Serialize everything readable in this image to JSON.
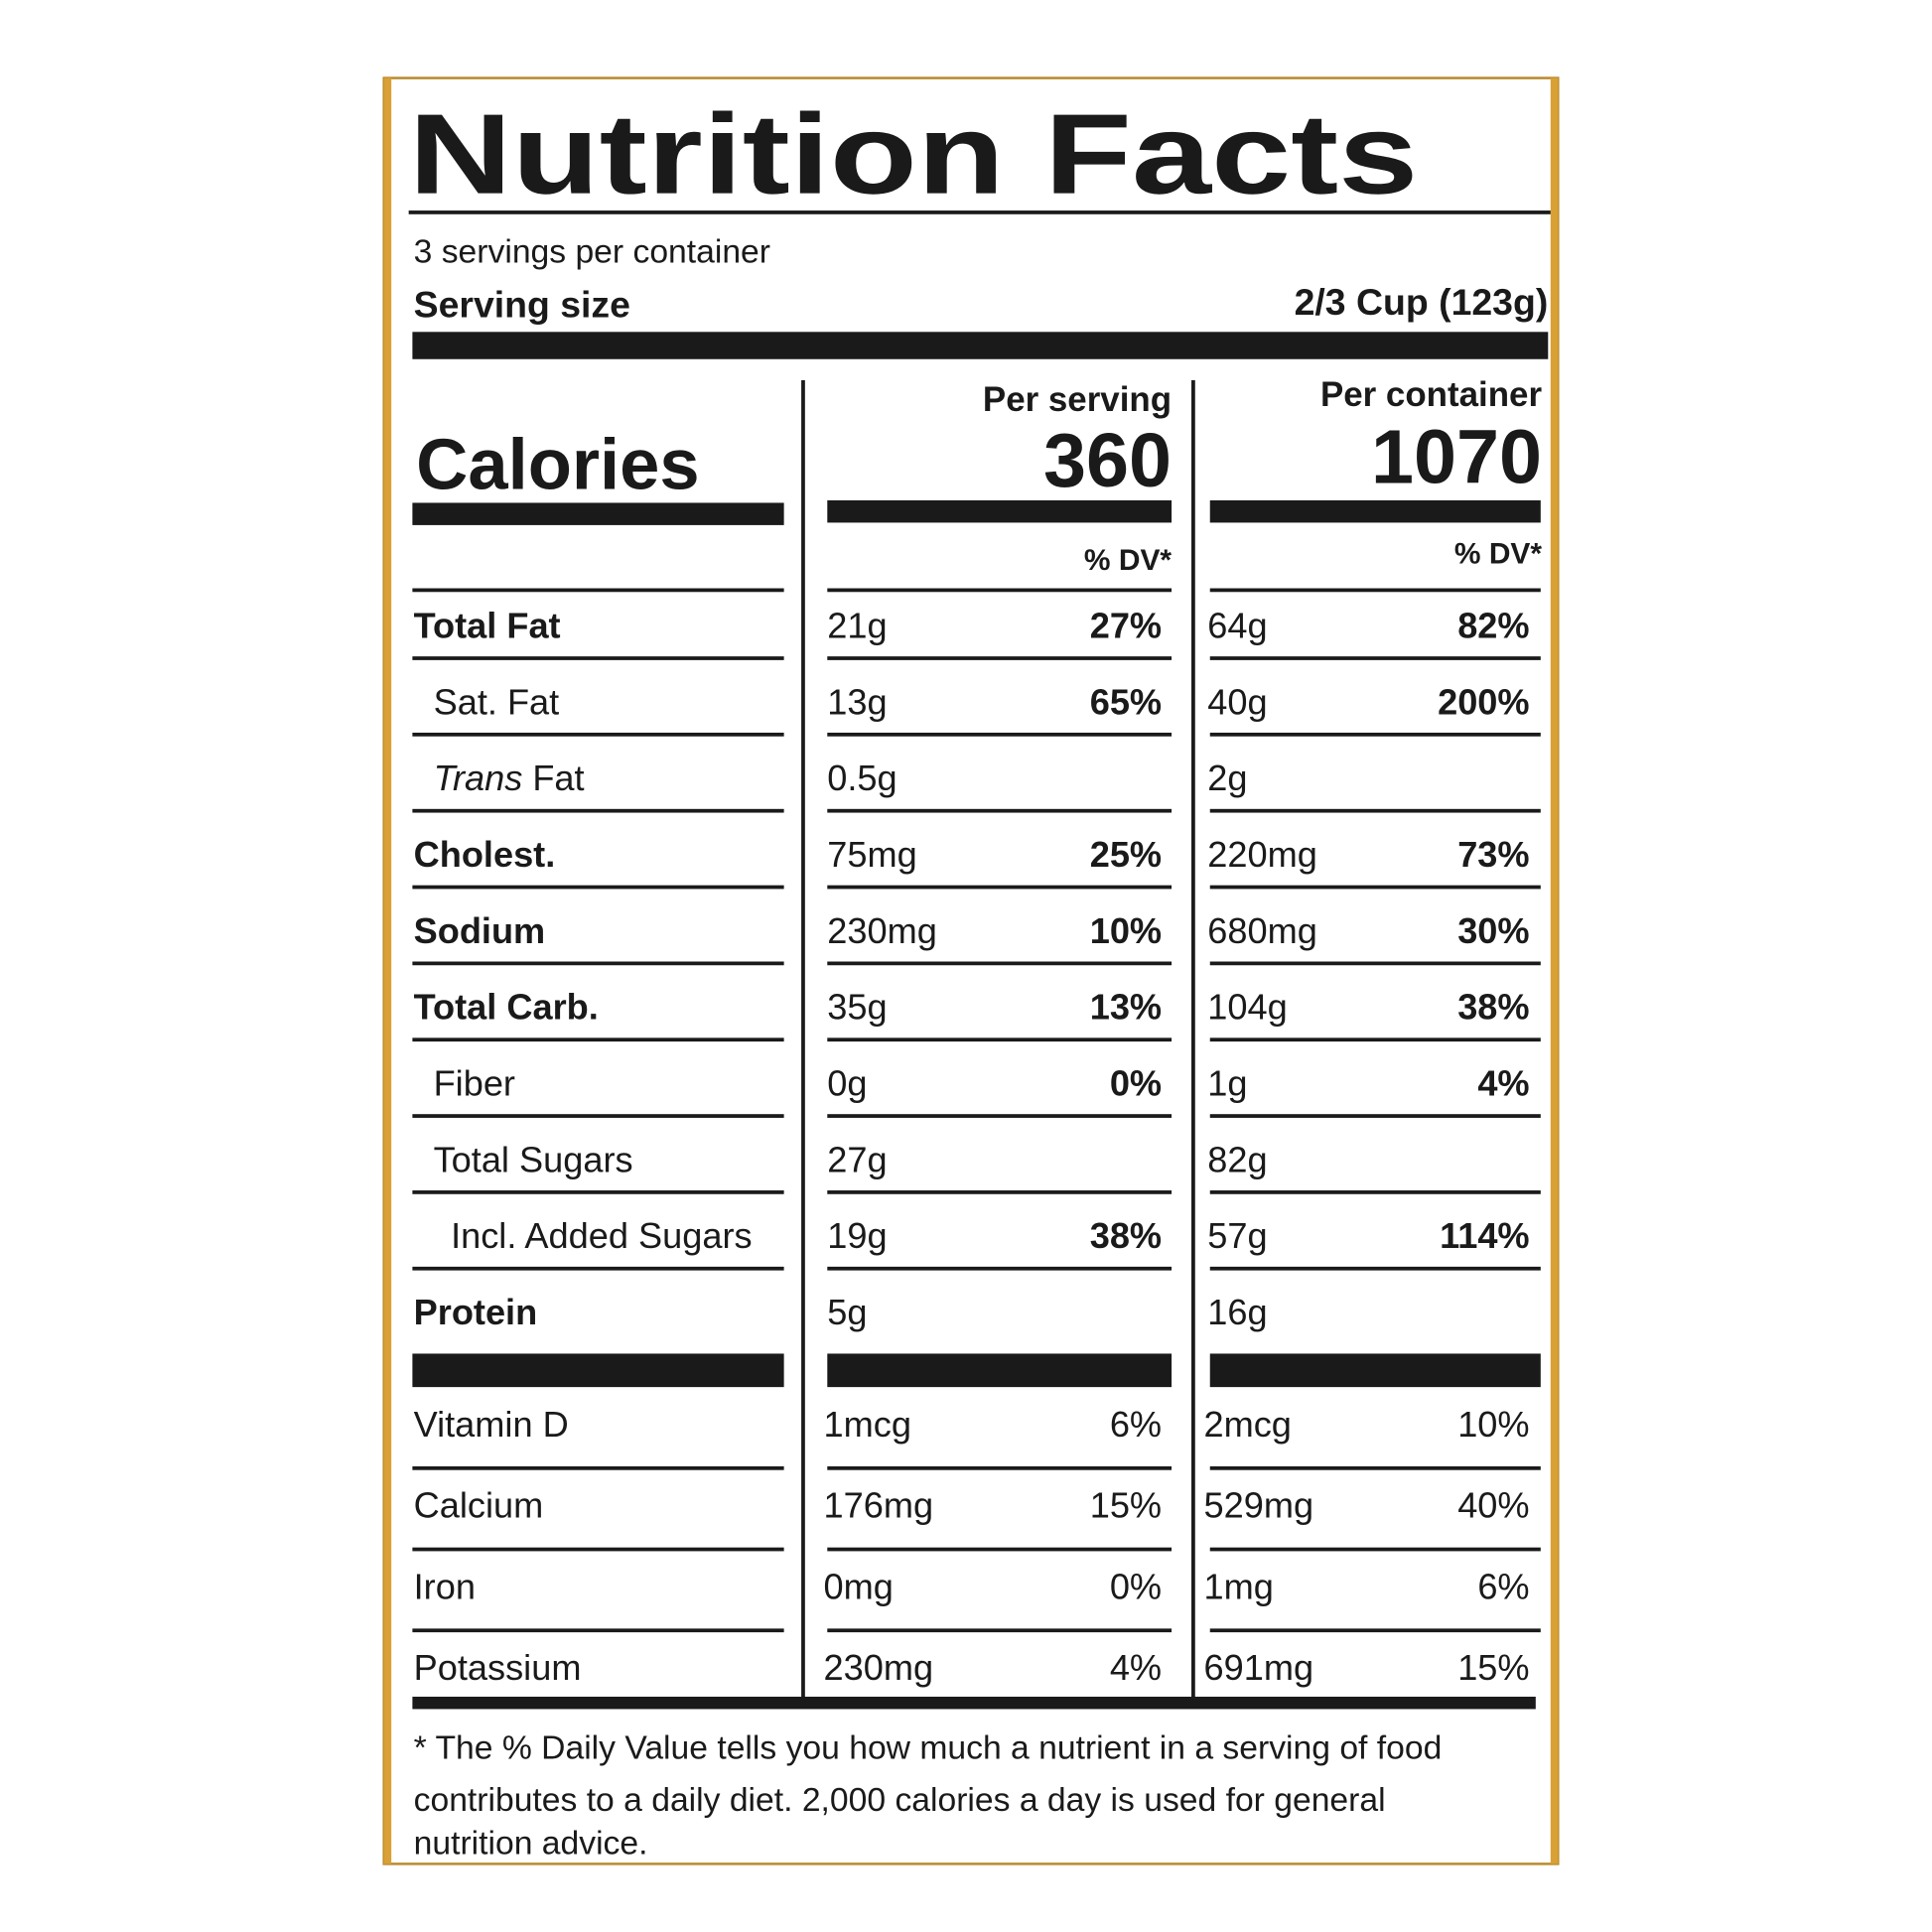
{
  "title": "Nutrition Facts",
  "servings_per_container": "3 servings per container",
  "serving_size": {
    "label": "Serving size",
    "value": "2/3 Cup (123g)"
  },
  "calories": {
    "label": "Calories"
  },
  "columns": [
    {
      "header": "Per serving",
      "calories": "360",
      "dv_header": "% DV*"
    },
    {
      "header": "Per container",
      "calories": "1070",
      "dv_header": "% DV*"
    }
  ],
  "nutrients": [
    {
      "name": "Total Fat",
      "bold": true,
      "indent": 0,
      "values": [
        [
          "21g",
          "27%"
        ],
        [
          "64g",
          "82%"
        ]
      ]
    },
    {
      "name": "Sat. Fat",
      "bold": false,
      "indent": 1,
      "values": [
        [
          "13g",
          "65%"
        ],
        [
          "40g",
          "200%"
        ]
      ]
    },
    {
      "name_italic": "Trans",
      "name": "Fat",
      "bold": false,
      "indent": 1,
      "values": [
        [
          "0.5g",
          null
        ],
        [
          "2g",
          null
        ]
      ]
    },
    {
      "name": "Cholest.",
      "bold": true,
      "indent": 0,
      "values": [
        [
          "75mg",
          "25%"
        ],
        [
          "220mg",
          "73%"
        ]
      ]
    },
    {
      "name": "Sodium",
      "bold": true,
      "indent": 0,
      "values": [
        [
          "230mg",
          "10%"
        ],
        [
          "680mg",
          "30%"
        ]
      ]
    },
    {
      "name": "Total Carb.",
      "bold": true,
      "indent": 0,
      "values": [
        [
          "35g",
          "13%"
        ],
        [
          "104g",
          "38%"
        ]
      ]
    },
    {
      "name": "Fiber",
      "bold": false,
      "indent": 1,
      "values": [
        [
          "0g",
          "0%"
        ],
        [
          "1g",
          "4%"
        ]
      ]
    },
    {
      "name": "Total Sugars",
      "bold": false,
      "indent": 1,
      "values": [
        [
          "27g",
          null
        ],
        [
          "82g",
          null
        ]
      ]
    },
    {
      "name": "Incl. Added Sugars",
      "bold": false,
      "indent": 2,
      "values": [
        [
          "19g",
          "38%"
        ],
        [
          "57g",
          "114%"
        ]
      ]
    },
    {
      "name": "Protein",
      "bold": true,
      "indent": 0,
      "values": [
        [
          "5g",
          null
        ],
        [
          "16g",
          null
        ]
      ]
    }
  ],
  "vitamins": [
    {
      "name": "Vitamin D",
      "values": [
        [
          "1mcg",
          "6%"
        ],
        [
          "2mcg",
          "10%"
        ]
      ]
    },
    {
      "name": "Calcium",
      "values": [
        [
          "176mg",
          "15%"
        ],
        [
          "529mg",
          "40%"
        ]
      ]
    },
    {
      "name": "Iron",
      "values": [
        [
          "0mg",
          "0%"
        ],
        [
          "1mg",
          "6%"
        ]
      ]
    },
    {
      "name": "Potassium",
      "values": [
        [
          "230mg",
          "4%"
        ],
        [
          "691mg",
          "15%"
        ]
      ]
    }
  ],
  "footnote": [
    "* The % Daily Value tells you how much a nutrient in a serving of food",
    "contributes to a daily diet. 2,000 calories a day is used for general",
    "nutrition advice."
  ]
}
